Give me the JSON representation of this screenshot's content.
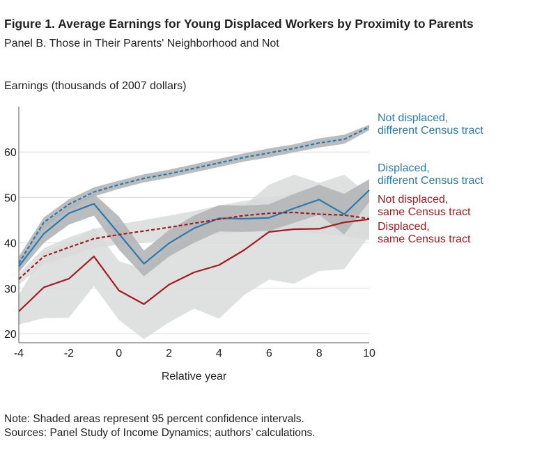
{
  "title": "Figure 1. Average Earnings for Young Displaced Workers by Proximity to Parents",
  "subtitle": "Panel B. Those in Their Parents' Neighborhood and Not",
  "notes": [
    "Note: Shaded areas represent 95 percent confidence intervals.",
    "Sources: Panel Study of Income Dynamics; authors’ calculations."
  ],
  "colors": {
    "blue": "#2a7ab0",
    "red": "#a31b1f",
    "band_light": "#d9dadb",
    "band_dark": "#b3b5b7",
    "grid": "#dedede",
    "axis": "#555555"
  },
  "chart_data": {
    "type": "line",
    "ylabel": "Earnings (thousands of 2007 dollars)",
    "xlabel": "Relative year",
    "xlim": [
      -4,
      10
    ],
    "ylim": [
      18,
      70
    ],
    "x_ticks": [
      -4,
      -2,
      0,
      2,
      4,
      6,
      8,
      10
    ],
    "y_ticks": [
      20,
      30,
      40,
      50,
      60
    ],
    "grid": "horizontal",
    "legend": "right",
    "x": [
      -4,
      -3,
      -2,
      -1,
      0,
      1,
      2,
      3,
      4,
      5,
      6,
      7,
      8,
      9,
      10
    ],
    "series": [
      {
        "name": "Not displaced, different Census tract",
        "label_lines": [
          "Not displaced,",
          "different Census tract"
        ],
        "color": "blue",
        "dashed": true,
        "band": "dark",
        "values": [
          35.5,
          44.5,
          48.5,
          51.2,
          52.8,
          54.2,
          55.2,
          56.4,
          57.6,
          58.8,
          59.8,
          60.8,
          62.0,
          62.8,
          65.5
        ],
        "ci_lower": [
          34.0,
          43.3,
          47.3,
          50.2,
          51.9,
          53.3,
          54.3,
          55.5,
          56.7,
          57.9,
          58.8,
          59.9,
          61.0,
          61.8,
          64.8
        ],
        "ci_upper": [
          37.0,
          45.6,
          49.6,
          52.2,
          53.7,
          55.1,
          56.1,
          57.3,
          58.5,
          59.7,
          60.8,
          61.7,
          63.0,
          63.8,
          66.0
        ]
      },
      {
        "name": "Displaced, different Census tract",
        "label_lines": [
          "Displaced,",
          "different Census tract"
        ],
        "color": "blue",
        "dashed": false,
        "band": "dark",
        "values": [
          34.8,
          42.0,
          46.5,
          48.6,
          42.0,
          35.4,
          39.9,
          43.2,
          45.4,
          45.3,
          45.5,
          47.6,
          49.5,
          46.3,
          51.6
        ],
        "ci_lower": [
          33.5,
          40.0,
          44.0,
          46.0,
          38.5,
          32.6,
          37.0,
          40.0,
          42.5,
          42.4,
          42.6,
          44.4,
          46.2,
          41.8,
          49.0
        ],
        "ci_upper": [
          36.2,
          44.2,
          48.3,
          50.8,
          45.8,
          38.3,
          42.8,
          46.0,
          48.3,
          48.2,
          48.5,
          50.8,
          52.8,
          50.8,
          54.0
        ]
      },
      {
        "name": "Not displaced, same Census tract",
        "label_lines": [
          "Not displaced,",
          "same Census tract"
        ],
        "color": "red",
        "dashed": true,
        "band": "light",
        "values": [
          32.0,
          37.0,
          39.0,
          40.9,
          41.8,
          42.6,
          43.4,
          44.3,
          45.2,
          46.0,
          46.5,
          46.7,
          46.3,
          46.1,
          45.3
        ],
        "ci_lower": [
          30.8,
          35.3,
          37.0,
          38.8,
          39.6,
          40.1,
          40.6,
          41.2,
          41.9,
          42.4,
          42.7,
          42.6,
          42.0,
          41.5,
          40.6
        ],
        "ci_upper": [
          33.3,
          38.8,
          41.2,
          43.1,
          44.1,
          45.0,
          46.0,
          47.0,
          48.2,
          49.2,
          50.1,
          50.7,
          50.7,
          50.8,
          50.1
        ]
      },
      {
        "name": "Displaced, same Census tract",
        "label_lines": [
          "Displaced,",
          "same Census tract"
        ],
        "color": "red",
        "dashed": false,
        "band": "light",
        "values": [
          24.9,
          30.2,
          32.1,
          37.0,
          29.5,
          26.5,
          30.8,
          33.5,
          35.1,
          38.4,
          42.4,
          43.0,
          43.1,
          44.5,
          45.2
        ],
        "ci_lower": [
          22.0,
          23.4,
          23.5,
          30.5,
          23.0,
          18.8,
          22.5,
          25.5,
          23.3,
          28.5,
          31.9,
          31.0,
          33.8,
          34.2,
          41.5
        ],
        "ci_upper": [
          28.5,
          38.0,
          40.0,
          43.3,
          36.0,
          34.2,
          39.0,
          41.5,
          46.2,
          48.2,
          52.8,
          55.0,
          53.2,
          55.0,
          50.5
        ]
      }
    ]
  }
}
